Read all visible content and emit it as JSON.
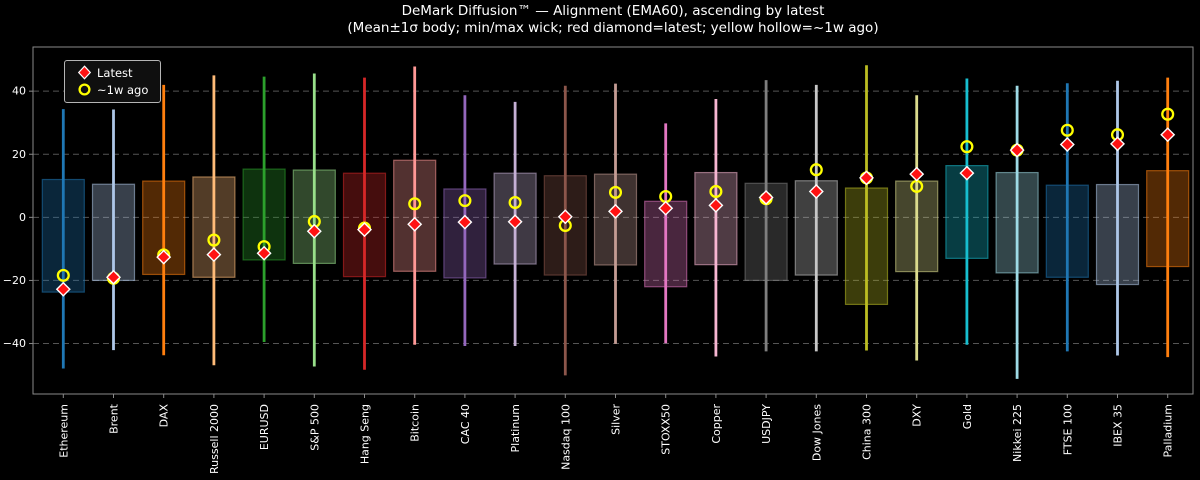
{
  "figure": {
    "title": "DeMark Diffusion™ — Alignment (EMA60), ascending by latest",
    "subtitle": "(Mean±1σ body; min/max wick; red diamond=latest; yellow hollow=~1w ago)"
  },
  "legend": {
    "items": [
      {
        "label": "Latest",
        "marker": "red-diamond"
      },
      {
        "label": "~1w ago",
        "marker": "yellow-hollow-circle"
      }
    ]
  },
  "chart_data": {
    "type": "bar",
    "subtype": "range-candles-with-markers",
    "title": "DeMark Diffusion™ — Alignment (EMA60), ascending by latest",
    "subtitle": "(Mean±1σ body; min/max wick; red diamond=latest; yellow hollow=~1w ago)",
    "xlabel": "",
    "ylabel": "",
    "ylim": [
      -56,
      54
    ],
    "yticks": [
      -40,
      -20,
      0,
      20,
      40
    ],
    "grid": true,
    "legend_position": "upper-left",
    "colors": {
      "background": "#000000",
      "text": "#ffffff",
      "grid": "#555555",
      "axis": "#8a8a8a",
      "latest_marker": "#ff1212",
      "latest_marker_edge": "#ffffff",
      "week_ago_marker": "#ffff00"
    },
    "series": [
      {
        "name": "Ethereum",
        "color": "#1f77b4",
        "min": -47.9,
        "max": 34.3,
        "body_low": -23.7,
        "body_high": 12.0,
        "latest": -22.8,
        "week_ago": -18.4
      },
      {
        "name": "Brent",
        "color": "#aec7e8",
        "min": -42.1,
        "max": 34.2,
        "body_low": -20.0,
        "body_high": 10.5,
        "latest": -19.0,
        "week_ago": -19.3
      },
      {
        "name": "DAX",
        "color": "#ff7f0e",
        "min": -43.7,
        "max": 42.0,
        "body_low": -18.1,
        "body_high": 11.5,
        "latest": -12.6,
        "week_ago": -11.9
      },
      {
        "name": "Russell 2000",
        "color": "#ffbb78",
        "min": -46.9,
        "max": 45.0,
        "body_low": -19.0,
        "body_high": 12.8,
        "latest": -11.8,
        "week_ago": -7.2
      },
      {
        "name": "EURUSD",
        "color": "#2ca02c",
        "min": -39.5,
        "max": 44.6,
        "body_low": -13.5,
        "body_high": 15.3,
        "latest": -11.4,
        "week_ago": -9.3
      },
      {
        "name": "S&P 500",
        "color": "#98df8a",
        "min": -47.3,
        "max": 45.6,
        "body_low": -14.6,
        "body_high": 15.0,
        "latest": -4.4,
        "week_ago": -1.3
      },
      {
        "name": "Hang Seng",
        "color": "#d62728",
        "min": -48.3,
        "max": 44.3,
        "body_low": -18.8,
        "body_high": 14.0,
        "latest": -3.9,
        "week_ago": -3.4
      },
      {
        "name": "Bitcoin",
        "color": "#ff9896",
        "min": -40.4,
        "max": 47.8,
        "body_low": -17.1,
        "body_high": 18.1,
        "latest": -2.2,
        "week_ago": 4.3
      },
      {
        "name": "CAC 40",
        "color": "#9467bd",
        "min": -40.8,
        "max": 38.7,
        "body_low": -19.2,
        "body_high": 9.0,
        "latest": -1.5,
        "week_ago": 5.3
      },
      {
        "name": "Platinum",
        "color": "#c5b0d5",
        "min": -40.8,
        "max": 36.6,
        "body_low": -14.8,
        "body_high": 14.0,
        "latest": -1.4,
        "week_ago": 4.7
      },
      {
        "name": "Nasdaq 100",
        "color": "#8c564b",
        "min": -50.1,
        "max": 41.7,
        "body_low": -18.3,
        "body_high": 13.2,
        "latest": 0.2,
        "week_ago": -2.6
      },
      {
        "name": "Silver",
        "color": "#c49c94",
        "min": -40.1,
        "max": 42.4,
        "body_low": -15.1,
        "body_high": 13.7,
        "latest": 1.9,
        "week_ago": 7.9
      },
      {
        "name": "STOXX50",
        "color": "#e377c2",
        "min": -39.9,
        "max": 29.8,
        "body_low": -22.0,
        "body_high": 5.1,
        "latest": 2.9,
        "week_ago": 6.6
      },
      {
        "name": "Copper",
        "color": "#f7b6d2",
        "min": -44.1,
        "max": 37.5,
        "body_low": -15.0,
        "body_high": 14.2,
        "latest": 3.8,
        "week_ago": 8.2
      },
      {
        "name": "USDJPY",
        "color": "#7f7f7f",
        "min": -42.5,
        "max": 43.5,
        "body_low": -20.0,
        "body_high": 10.8,
        "latest": 6.3,
        "week_ago": 5.9
      },
      {
        "name": "Dow Jones",
        "color": "#c7c7c7",
        "min": -42.5,
        "max": 42.0,
        "body_low": -18.3,
        "body_high": 11.6,
        "latest": 8.2,
        "week_ago": 15.1
      },
      {
        "name": "China 300",
        "color": "#bcbd22",
        "min": -42.2,
        "max": 48.2,
        "body_low": -27.6,
        "body_high": 9.3,
        "latest": 12.5,
        "week_ago": 12.5
      },
      {
        "name": "DXY",
        "color": "#dbdb8d",
        "min": -45.4,
        "max": 38.7,
        "body_low": -17.2,
        "body_high": 11.5,
        "latest": 13.7,
        "week_ago": 9.8
      },
      {
        "name": "Gold",
        "color": "#17becf",
        "min": -40.4,
        "max": 44.0,
        "body_low": -13.0,
        "body_high": 16.4,
        "latest": 14.0,
        "week_ago": 22.4
      },
      {
        "name": "Nikkei 225",
        "color": "#9edae5",
        "min": -51.2,
        "max": 41.7,
        "body_low": -17.6,
        "body_high": 14.2,
        "latest": 21.3,
        "week_ago": 21.3
      },
      {
        "name": "FTSE 100",
        "color": "#1f77b4",
        "min": -42.5,
        "max": 42.5,
        "body_low": -19.0,
        "body_high": 10.2,
        "latest": 23.1,
        "week_ago": 27.6
      },
      {
        "name": "IBEX 35",
        "color": "#aec7e8",
        "min": -43.8,
        "max": 43.3,
        "body_low": -21.3,
        "body_high": 10.4,
        "latest": 23.3,
        "week_ago": 26.2
      },
      {
        "name": "Palladium",
        "color": "#ff7f0e",
        "min": -44.3,
        "max": 44.3,
        "body_low": -15.6,
        "body_high": 14.8,
        "latest": 26.2,
        "week_ago": 32.7
      }
    ]
  }
}
